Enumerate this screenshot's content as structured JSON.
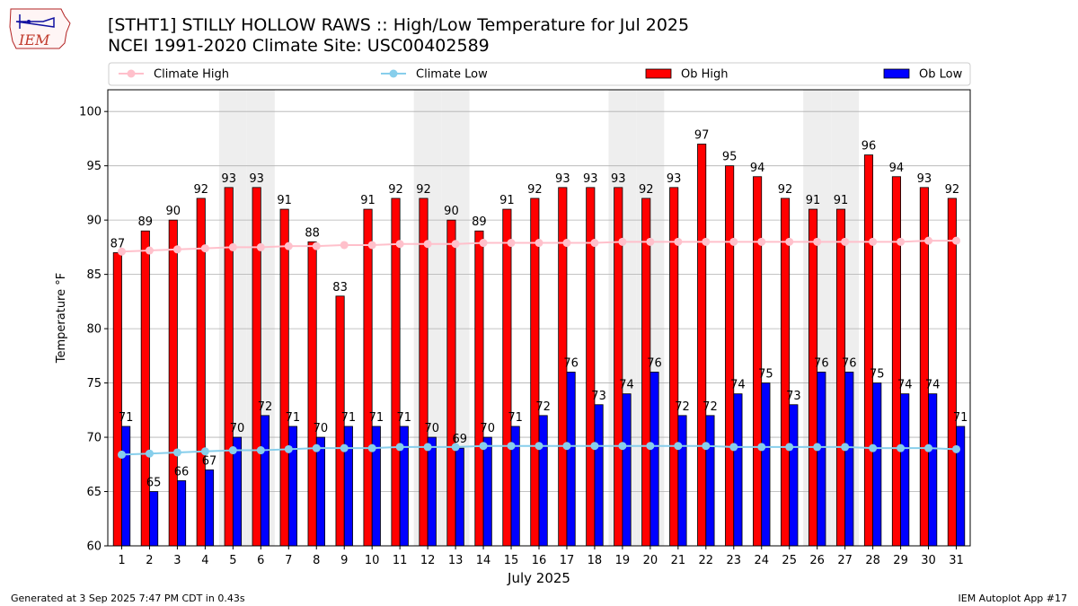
{
  "header": {
    "title_line1": "[STHT1] STILLY HOLLOW RAWS :: High/Low Temperature for Jul 2025",
    "title_line2": "NCEI 1991-2020 Climate Site: USC00402589",
    "logo_text": "IEM",
    "logo_icon": "iowa-state-outline-icon"
  },
  "footer": {
    "generated": "Generated at 3 Sep 2025 7:47 PM CDT in 0.43s",
    "app": "IEM Autoplot App #17"
  },
  "chart_data": {
    "type": "bar",
    "xlabel": "July 2025",
    "ylabel": "Temperature °F",
    "ylim": [
      60,
      102
    ],
    "yticks": [
      60,
      65,
      70,
      75,
      80,
      85,
      90,
      95,
      100
    ],
    "grid": true,
    "legend_position": "top",
    "weekend_shading_days": [
      5,
      6,
      12,
      13,
      19,
      20,
      26,
      27
    ],
    "categories": [
      "1",
      "2",
      "3",
      "4",
      "5",
      "6",
      "7",
      "8",
      "9",
      "10",
      "11",
      "12",
      "13",
      "14",
      "15",
      "16",
      "17",
      "18",
      "19",
      "20",
      "21",
      "22",
      "23",
      "24",
      "25",
      "26",
      "27",
      "28",
      "29",
      "30",
      "31"
    ],
    "series": [
      {
        "name": "Climate High",
        "kind": "line",
        "color": "#ffc0cb",
        "values": [
          87.1,
          87.2,
          87.3,
          87.4,
          87.5,
          87.5,
          87.6,
          87.6,
          87.7,
          87.7,
          87.8,
          87.8,
          87.8,
          87.9,
          87.9,
          87.9,
          87.9,
          87.9,
          88.0,
          88.0,
          88.0,
          88.0,
          88.0,
          88.0,
          88.0,
          88.0,
          88.0,
          88.0,
          88.0,
          88.1,
          88.1
        ]
      },
      {
        "name": "Climate Low",
        "kind": "line",
        "color": "#87ceeb",
        "values": [
          68.4,
          68.5,
          68.6,
          68.7,
          68.8,
          68.8,
          68.9,
          69.0,
          69.0,
          69.0,
          69.1,
          69.1,
          69.1,
          69.2,
          69.2,
          69.2,
          69.2,
          69.2,
          69.2,
          69.2,
          69.2,
          69.2,
          69.1,
          69.1,
          69.1,
          69.1,
          69.1,
          69.0,
          69.0,
          69.0,
          68.9
        ]
      },
      {
        "name": "Ob High",
        "kind": "bar",
        "color": "#ff0000",
        "values": [
          87,
          89,
          90,
          92,
          93,
          93,
          91,
          88,
          83,
          91,
          92,
          92,
          90,
          89,
          91,
          92,
          93,
          93,
          93,
          92,
          93,
          97,
          95,
          94,
          92,
          91,
          91,
          96,
          94,
          93,
          92
        ]
      },
      {
        "name": "Ob Low",
        "kind": "bar",
        "color": "#0000ff",
        "values": [
          71,
          65,
          66,
          67,
          70,
          72,
          71,
          70,
          71,
          71,
          71,
          70,
          69,
          70,
          71,
          72,
          76,
          73,
          74,
          76,
          72,
          72,
          74,
          75,
          73,
          76,
          76,
          75,
          74,
          74,
          71
        ]
      }
    ]
  }
}
